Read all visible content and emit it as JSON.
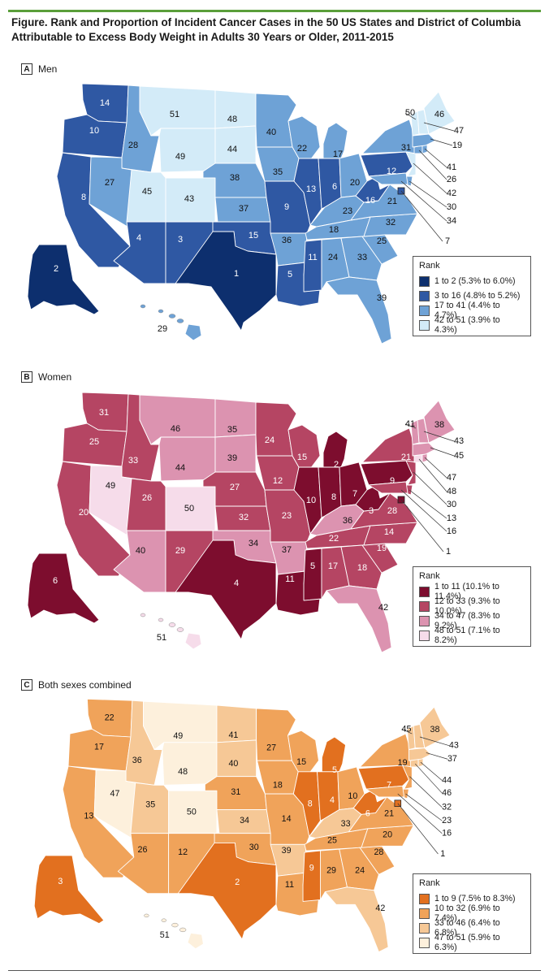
{
  "figure": {
    "title": "Figure. Rank and Proportion of Incident Cancer Cases in the 50 US States and District of Columbia Attributable to Excess Body Weight in Adults 30 Years or Older, 2011-2015"
  },
  "legend_title": "Rank",
  "panels": [
    {
      "letter": "A",
      "title": "Men",
      "legend": [
        {
          "label": "1 to 2 (5.3% to 6.0%)",
          "color": "#0d2f6e"
        },
        {
          "label": "3 to 16 (4.8% to 5.2%)",
          "color": "#2f58a3"
        },
        {
          "label": "17 to 41 (4.4% to 4.7%)",
          "color": "#6ea2d6"
        },
        {
          "label": "42 to 51 (3.9% to 4.3%)",
          "color": "#d3ebf8"
        }
      ],
      "ranks": {
        "WA": "14",
        "OR": "10",
        "CA": "8",
        "ID": "28",
        "NV": "27",
        "MT": "51",
        "WY": "49",
        "UT": "45",
        "AZ": "4",
        "CO": "43",
        "NM": "3",
        "ND": "48",
        "SD": "44",
        "NE": "38",
        "KS": "37",
        "OK": "15",
        "TX": "1",
        "MN": "40",
        "IA": "35",
        "MO": "9",
        "AR": "36",
        "LA": "5",
        "WI": "22",
        "IL": "13",
        "MI": "17",
        "IN": "6",
        "OH": "20",
        "KY": "23",
        "TN": "18",
        "MS": "11",
        "AL": "24",
        "GA": "33",
        "FL": "39",
        "SC": "25",
        "NC": "32",
        "VA": "21",
        "WV": "16",
        "PA": "12",
        "NY": "31",
        "AK": "2",
        "HI": "29",
        "ME": "46",
        "VT": "50",
        "NH": "47",
        "MA": "19",
        "RI": "41",
        "CT": "26",
        "NJ": "42",
        "DE": "30",
        "MD": "34",
        "DC": "7"
      },
      "classes": {
        "WA": 2,
        "OR": 2,
        "CA": 2,
        "ID": 3,
        "NV": 3,
        "MT": 4,
        "WY": 4,
        "UT": 4,
        "AZ": 2,
        "CO": 4,
        "NM": 2,
        "ND": 4,
        "SD": 4,
        "NE": 3,
        "KS": 3,
        "OK": 2,
        "TX": 1,
        "MN": 3,
        "IA": 3,
        "MO": 2,
        "AR": 3,
        "LA": 2,
        "WI": 3,
        "IL": 2,
        "MI": 3,
        "IN": 2,
        "OH": 3,
        "KY": 3,
        "TN": 3,
        "MS": 2,
        "AL": 3,
        "GA": 3,
        "FL": 3,
        "SC": 3,
        "NC": 3,
        "VA": 3,
        "WV": 2,
        "PA": 2,
        "NY": 3,
        "AK": 1,
        "HI": 3,
        "ME": 4,
        "VT": 4,
        "NH": 4,
        "MA": 3,
        "RI": 3,
        "CT": 3,
        "NJ": 4,
        "DE": 3,
        "MD": 3,
        "DC": 2
      }
    },
    {
      "letter": "B",
      "title": "Women",
      "legend": [
        {
          "label": "1 to 11 (10.1% to 11.4%)",
          "color": "#7d0d2e"
        },
        {
          "label": "12 to 33 (9.3% to 10.0%)",
          "color": "#b54563"
        },
        {
          "label": "34 to 47 (8.3% to 9.2%)",
          "color": "#dc93b0"
        },
        {
          "label": "48 to 51 (7.1% to 8.2%)",
          "color": "#f6dcea"
        }
      ],
      "ranks": {
        "WA": "31",
        "OR": "25",
        "CA": "20",
        "ID": "33",
        "NV": "49",
        "MT": "46",
        "WY": "44",
        "UT": "26",
        "AZ": "40",
        "CO": "50",
        "NM": "29",
        "ND": "35",
        "SD": "39",
        "NE": "27",
        "KS": "32",
        "OK": "34",
        "TX": "4",
        "MN": "24",
        "IA": "12",
        "MO": "23",
        "AR": "37",
        "LA": "11",
        "WI": "15",
        "IL": "10",
        "MI": "2",
        "IN": "8",
        "OH": "7",
        "KY": "36",
        "TN": "22",
        "MS": "5",
        "AL": "17",
        "GA": "18",
        "FL": "42",
        "SC": "19",
        "NC": "14",
        "VA": "28",
        "WV": "3",
        "PA": "9",
        "NY": "21",
        "AK": "6",
        "HI": "51",
        "ME": "38",
        "VT": "41",
        "NH": "43",
        "MA": "45",
        "RI": "47",
        "CT": "48",
        "NJ": "30",
        "DE": "13",
        "MD": "16",
        "DC": "1"
      },
      "classes": {
        "WA": 2,
        "OR": 2,
        "CA": 2,
        "ID": 2,
        "NV": 4,
        "MT": 3,
        "WY": 3,
        "UT": 2,
        "AZ": 3,
        "CO": 4,
        "NM": 2,
        "ND": 3,
        "SD": 3,
        "NE": 2,
        "KS": 2,
        "OK": 3,
        "TX": 1,
        "MN": 2,
        "IA": 2,
        "MO": 2,
        "AR": 3,
        "LA": 1,
        "WI": 2,
        "IL": 1,
        "MI": 1,
        "IN": 1,
        "OH": 1,
        "KY": 3,
        "TN": 2,
        "MS": 1,
        "AL": 2,
        "GA": 2,
        "FL": 3,
        "SC": 2,
        "NC": 2,
        "VA": 2,
        "WV": 1,
        "PA": 1,
        "NY": 2,
        "AK": 1,
        "HI": 4,
        "ME": 3,
        "VT": 3,
        "NH": 3,
        "MA": 3,
        "RI": 3,
        "CT": 4,
        "NJ": 2,
        "DE": 2,
        "MD": 2,
        "DC": 1
      }
    },
    {
      "letter": "C",
      "title": "Both sexes combined",
      "legend": [
        {
          "label": "1 to 9 (7.5% to 8.3%)",
          "color": "#e2701f"
        },
        {
          "label": "10 to 32 (6.9% to 7.4%)",
          "color": "#f0a35a"
        },
        {
          "label": "33 to 46 (6.4% to 6.8%)",
          "color": "#f6c896"
        },
        {
          "label": "47 to 51 (5.9% to 6.3%)",
          "color": "#fdf0dc"
        }
      ],
      "ranks": {
        "WA": "22",
        "OR": "17",
        "CA": "13",
        "ID": "36",
        "NV": "47",
        "MT": "49",
        "WY": "48",
        "UT": "35",
        "AZ": "26",
        "CO": "50",
        "NM": "12",
        "ND": "41",
        "SD": "40",
        "NE": "31",
        "KS": "34",
        "OK": "30",
        "TX": "2",
        "MN": "27",
        "IA": "18",
        "MO": "14",
        "AR": "39",
        "LA": "11",
        "WI": "15",
        "IL": "8",
        "MI": "5",
        "IN": "4",
        "OH": "10",
        "KY": "33",
        "TN": "25",
        "MS": "9",
        "AL": "29",
        "GA": "24",
        "FL": "42",
        "SC": "28",
        "NC": "20",
        "VA": "21",
        "WV": "6",
        "PA": "7",
        "NY": "19",
        "AK": "3",
        "HI": "51",
        "ME": "38",
        "VT": "45",
        "NH": "43",
        "MA": "37",
        "RI": "44",
        "CT": "46",
        "NJ": "32",
        "DE": "23",
        "MD": "16",
        "DC": "1"
      },
      "classes": {
        "WA": 2,
        "OR": 2,
        "CA": 2,
        "ID": 3,
        "NV": 4,
        "MT": 4,
        "WY": 4,
        "UT": 3,
        "AZ": 2,
        "CO": 4,
        "NM": 2,
        "ND": 3,
        "SD": 3,
        "NE": 2,
        "KS": 3,
        "OK": 2,
        "TX": 1,
        "MN": 2,
        "IA": 2,
        "MO": 2,
        "AR": 3,
        "LA": 2,
        "WI": 2,
        "IL": 1,
        "MI": 1,
        "IN": 1,
        "OH": 2,
        "KY": 3,
        "TN": 2,
        "MS": 1,
        "AL": 2,
        "GA": 2,
        "FL": 3,
        "SC": 2,
        "NC": 2,
        "VA": 2,
        "WV": 1,
        "PA": 1,
        "NY": 2,
        "AK": 1,
        "HI": 4,
        "ME": 3,
        "VT": 3,
        "NH": 3,
        "MA": 3,
        "RI": 3,
        "CT": 3,
        "NJ": 2,
        "DE": 2,
        "MD": 2,
        "DC": 1
      }
    }
  ]
}
